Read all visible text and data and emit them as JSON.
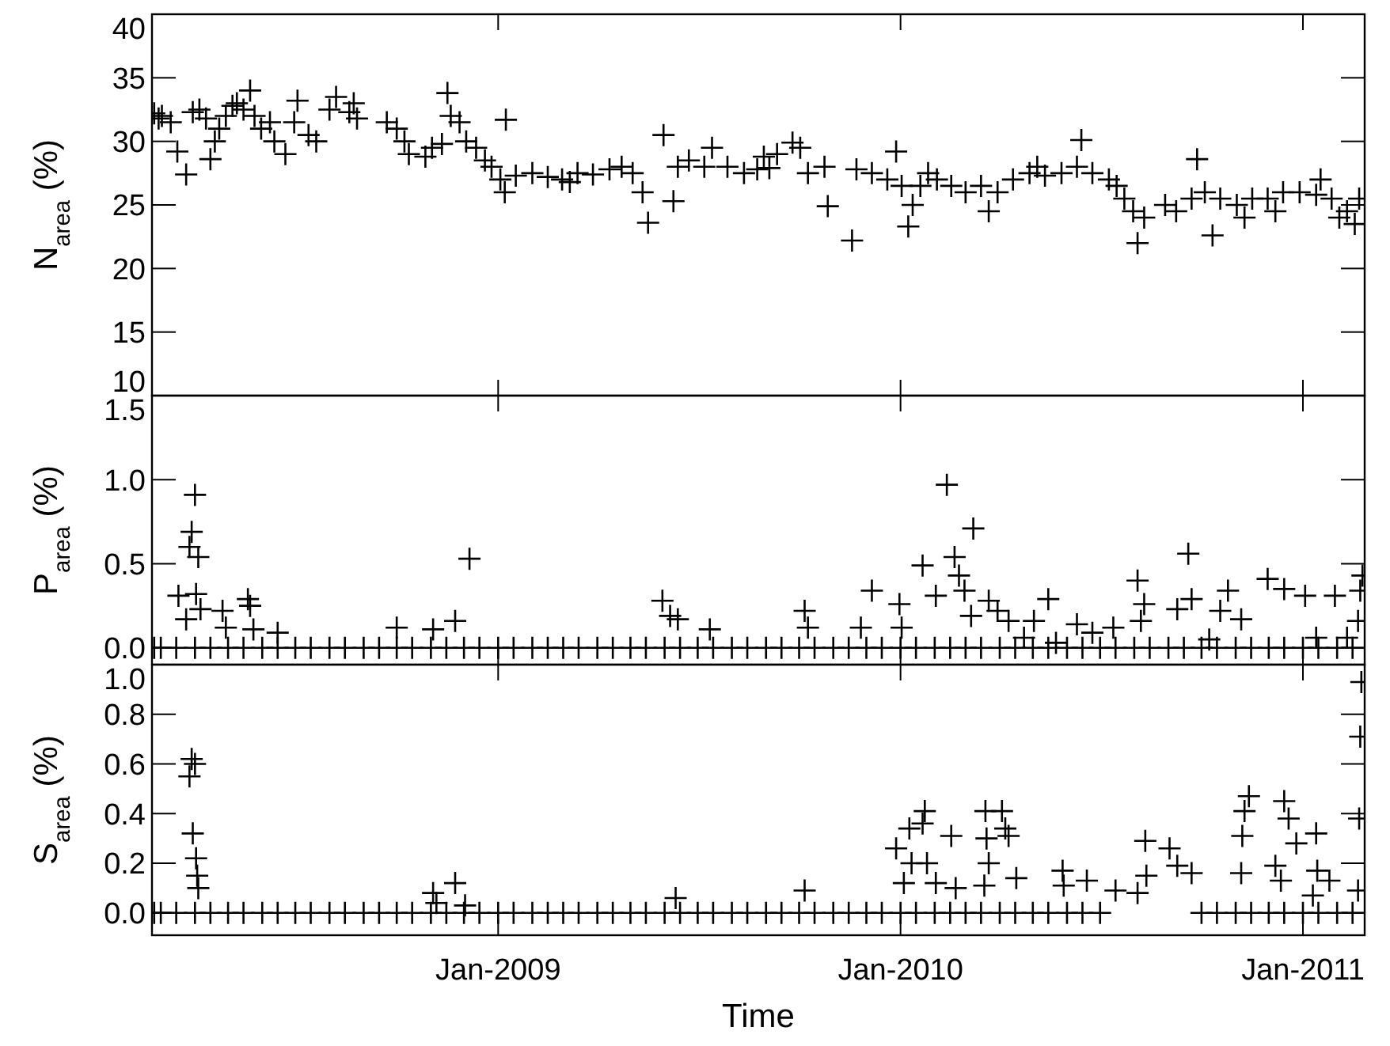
{
  "chart_data": [
    {
      "type": "scatter",
      "ylabel": "N$_{area}$ (%)",
      "xlim": [
        "2008-02-22",
        "2011-02-26"
      ],
      "ylim": [
        10,
        40
      ],
      "yticks": [
        10,
        15,
        20,
        25,
        30,
        35,
        40
      ],
      "xticks": [
        {
          "value": "2009-01-01",
          "label": null
        },
        {
          "value": "2010-01-01",
          "label": null
        },
        {
          "value": "2011-01-01",
          "label": null
        }
      ],
      "tick_labels": "y",
      "marker": "cross",
      "series": [
        {
          "color": "#000000",
          "x": [
            "2008-02-24",
            "2008-02-28",
            "2008-03-02",
            "2008-03-10",
            "2008-03-16",
            "2008-03-24",
            "2008-03-30",
            "2008-04-05",
            "2008-04-11",
            "2008-04-15",
            "2008-04-19",
            "2008-04-23",
            "2008-04-29",
            "2008-05-05",
            "2008-05-09",
            "2008-05-15",
            "2008-05-21",
            "2008-05-25",
            "2008-05-31",
            "2008-06-08",
            "2008-06-12",
            "2008-06-22",
            "2008-06-30",
            "2008-07-03",
            "2008-07-13",
            "2008-07-20",
            "2008-08-01",
            "2008-08-07",
            "2008-08-19",
            "2008-08-23",
            "2008-08-26",
            "2008-09-22",
            "2008-10-01",
            "2008-10-08",
            "2008-10-12",
            "2008-10-27",
            "2008-11-02",
            "2008-11-11",
            "2008-11-16",
            "2008-11-19",
            "2008-11-27",
            "2008-12-03",
            "2008-12-12",
            "2008-12-20",
            "2008-12-26",
            "2009-01-03",
            "2009-01-07",
            "2009-01-08",
            "2009-01-17",
            "2009-02-01",
            "2009-02-15",
            "2009-02-28",
            "2009-03-07",
            "2009-03-14",
            "2009-03-28",
            "2009-04-12",
            "2009-04-23",
            "2009-05-03",
            "2009-05-12",
            "2009-05-17",
            "2009-05-31",
            "2009-06-09",
            "2009-06-13",
            "2009-06-23",
            "2009-07-07",
            "2009-07-14",
            "2009-07-28",
            "2009-08-12",
            "2009-08-24",
            "2009-08-30",
            "2009-09-04",
            "2009-09-11",
            "2009-09-25",
            "2009-10-02",
            "2009-10-09",
            "2009-10-24",
            "2009-10-27",
            "2009-11-18",
            "2009-11-22",
            "2009-12-06",
            "2009-12-20",
            "2009-12-28",
            "2010-01-02",
            "2010-01-08",
            "2010-01-12",
            "2010-01-19",
            "2010-01-26",
            "2010-02-03",
            "2010-02-16",
            "2010-03-01",
            "2010-03-15",
            "2010-03-22",
            "2010-03-30",
            "2010-04-13",
            "2010-04-28",
            "2010-05-05",
            "2010-05-12",
            "2010-05-27",
            "2010-06-10",
            "2010-06-14",
            "2010-06-24",
            "2010-07-09",
            "2010-07-16",
            "2010-07-23",
            "2010-07-31",
            "2010-08-04",
            "2010-08-10",
            "2010-08-29",
            "2010-09-08",
            "2010-09-22",
            "2010-09-27",
            "2010-10-04",
            "2010-10-11",
            "2010-10-18",
            "2010-11-02",
            "2010-11-09",
            "2010-11-16",
            "2010-11-30",
            "2010-12-07",
            "2010-12-14",
            "2010-12-29",
            "2011-01-13",
            "2011-01-17",
            "2011-01-27",
            "2011-02-03",
            "2011-02-10",
            "2011-02-17",
            "2011-02-21"
          ],
          "values": [
            32.2,
            31.8,
            32.0,
            31.5,
            29.2,
            27.4,
            32.3,
            32.5,
            31.8,
            28.6,
            30.0,
            31.0,
            32.0,
            32.8,
            33.0,
            32.5,
            34.0,
            32.0,
            31.0,
            31.5,
            30.0,
            29.0,
            31.5,
            33.2,
            30.5,
            30.0,
            32.5,
            33.5,
            32.3,
            33.0,
            31.8,
            31.5,
            31.0,
            30.0,
            29.0,
            28.8,
            29.5,
            29.8,
            33.8,
            32.0,
            31.5,
            30.0,
            29.5,
            28.5,
            28.0,
            27.0,
            26.0,
            31.7,
            27.3,
            27.5,
            27.2,
            27.0,
            26.8,
            27.5,
            27.4,
            27.8,
            28.0,
            27.5,
            26.0,
            23.6,
            30.5,
            25.3,
            28.0,
            28.5,
            28.0,
            29.5,
            28.0,
            27.5,
            27.8,
            28.8,
            27.9,
            29.0,
            29.9,
            29.5,
            27.5,
            28.0,
            24.9,
            22.2,
            27.8,
            27.5,
            27.0,
            29.2,
            26.5,
            23.3,
            25.0,
            26.5,
            27.5,
            27.0,
            26.5,
            26.0,
            26.5,
            24.5,
            26.0,
            27.0,
            27.5,
            28.0,
            27.3,
            27.5,
            28.0,
            30.1,
            27.5,
            27.0,
            26.5,
            25.5,
            24.5,
            22.0,
            24.0,
            25.0,
            24.5,
            25.5,
            28.6,
            26.0,
            22.6,
            25.5,
            25.0,
            24.0,
            25.5,
            25.5,
            24.5,
            26.0,
            26.0,
            25.8,
            27.0,
            25.5,
            24.0,
            24.5,
            23.5,
            25.5
          ]
        }
      ]
    },
    {
      "type": "scatter",
      "ylabel": "P$_{area}$ (%)",
      "xlim": [
        "2008-02-22",
        "2011-02-26"
      ],
      "ylim": [
        -0.1,
        1.5
      ],
      "yticks": [
        {
          "value": 0,
          "label": "0.0"
        },
        {
          "value": 0.5,
          "label": "0.5"
        },
        {
          "value": 1,
          "label": "1.0"
        },
        {
          "value": 1.5,
          "label": "1.5"
        }
      ],
      "xticks": [
        {
          "value": "2009-01-01",
          "label": null
        },
        {
          "value": "2010-01-01",
          "label": null
        },
        {
          "value": "2011-01-01",
          "label": null
        }
      ],
      "tick_labels": "y",
      "marker": "cross",
      "series": [
        {
          "color": "#000000",
          "x": [
            "2008-02-24",
            "2008-03-01",
            "2008-03-15",
            "2008-04-01",
            "2008-04-15",
            "2008-05-01",
            "2008-05-15",
            "2008-06-01",
            "2008-06-15",
            "2008-07-01",
            "2008-07-15",
            "2008-08-01",
            "2008-08-15",
            "2008-09-01",
            "2008-09-15",
            "2008-10-01",
            "2008-10-15",
            "2008-11-01",
            "2008-11-15",
            "2008-12-01",
            "2008-12-15",
            "2009-01-01",
            "2009-01-15",
            "2009-02-01",
            "2009-02-15",
            "2009-03-01",
            "2009-03-15",
            "2009-04-01",
            "2009-04-15",
            "2009-05-01",
            "2009-05-15",
            "2009-06-01",
            "2009-06-15",
            "2009-07-01",
            "2009-07-15",
            "2009-08-01",
            "2009-08-15",
            "2009-09-01",
            "2009-09-15",
            "2009-10-01",
            "2009-10-15",
            "2009-11-01",
            "2009-11-15",
            "2009-12-01",
            "2009-12-15",
            "2010-01-01",
            "2010-01-15",
            "2010-02-01",
            "2010-02-15",
            "2010-03-01",
            "2010-03-15",
            "2010-04-01",
            "2010-04-15",
            "2010-05-01",
            "2010-05-15",
            "2010-06-01",
            "2010-06-15",
            "2010-07-01",
            "2010-07-15",
            "2010-08-01",
            "2010-08-15",
            "2010-09-01",
            "2010-09-15",
            "2010-10-01",
            "2010-10-15",
            "2010-11-01",
            "2010-11-15",
            "2010-12-01",
            "2010-12-15",
            "2011-01-01",
            "2011-01-15",
            "2011-02-01",
            "2011-02-15",
            "2008-03-17",
            "2008-03-24",
            "2008-03-27",
            "2008-03-29",
            "2008-04-01",
            "2008-04-02",
            "2008-04-04",
            "2008-04-06",
            "2008-04-26",
            "2008-04-29",
            "2008-05-19",
            "2008-05-21",
            "2008-05-24",
            "2008-06-15",
            "2008-10-01",
            "2008-11-03",
            "2008-11-23",
            "2008-12-06",
            "2009-05-30",
            "2009-06-06",
            "2009-06-13",
            "2009-07-12",
            "2009-10-06",
            "2009-10-09",
            "2009-11-26",
            "2009-12-06",
            "2009-12-31",
            "2010-01-02",
            "2010-01-21",
            "2010-02-02",
            "2010-02-12",
            "2010-02-19",
            "2010-02-23",
            "2010-02-28",
            "2010-03-06",
            "2010-03-08",
            "2010-03-22",
            "2010-03-30",
            "2010-04-09",
            "2010-04-23",
            "2010-05-02",
            "2010-05-15",
            "2010-05-22",
            "2010-06-10",
            "2010-06-24",
            "2010-07-13",
            "2010-08-04",
            "2010-08-07",
            "2010-08-10",
            "2010-09-09",
            "2010-09-19",
            "2010-09-22",
            "2010-10-08",
            "2010-10-18",
            "2010-10-25",
            "2010-11-06",
            "2010-11-30",
            "2010-12-15",
            "2011-01-03",
            "2011-01-13",
            "2011-01-30",
            "2011-02-10",
            "2011-02-20",
            "2011-02-22",
            "2011-02-24"
          ],
          "values": [
            0,
            0,
            0,
            0,
            0,
            0,
            0,
            0,
            0,
            0,
            0,
            0,
            0,
            0,
            0,
            0,
            0,
            0,
            0,
            0,
            0,
            0,
            0,
            0,
            0,
            0,
            0,
            0,
            0,
            0,
            0,
            0,
            0,
            0,
            0,
            0,
            0,
            0,
            0,
            0,
            0,
            0,
            0,
            0,
            0,
            0,
            0,
            0,
            0,
            0,
            0,
            0,
            0,
            0,
            0,
            0,
            0,
            0,
            0,
            0,
            0,
            0,
            0,
            0,
            0,
            0,
            0,
            0,
            0,
            0,
            0,
            0,
            0,
            0.31,
            0.17,
            0.6,
            0.69,
            0.91,
            0.32,
            0.54,
            0.23,
            0.22,
            0.12,
            0.29,
            0.25,
            0.11,
            0.09,
            0.12,
            0.11,
            0.16,
            0.53,
            0.28,
            0.19,
            0.17,
            0.11,
            0.22,
            0.12,
            0.12,
            0.34,
            0.26,
            0.12,
            0.49,
            0.31,
            0.97,
            0.54,
            0.43,
            0.34,
            0.19,
            0.71,
            0.28,
            0.22,
            0.16,
            0.06,
            0.16,
            0.29,
            0.03,
            0.14,
            0.09,
            0.12,
            0.4,
            0.16,
            0.26,
            0.23,
            0.56,
            0.29,
            0.05,
            0.22,
            0.34,
            0.17,
            0.41,
            0.35,
            0.31,
            0.06,
            0.31,
            0.06,
            0.16,
            0.34,
            0.43
          ]
        }
      ]
    },
    {
      "type": "scatter",
      "ylabel": "S$_{area}$ (%)",
      "xlabel": "Time",
      "xlim": [
        "2008-02-22",
        "2011-02-26"
      ],
      "ylim": [
        -0.09,
        1.0
      ],
      "yticks": [
        {
          "value": 0,
          "label": "0.0"
        },
        {
          "value": 0.2,
          "label": "0.2"
        },
        {
          "value": 0.4,
          "label": "0.4"
        },
        {
          "value": 0.6,
          "label": "0.6"
        },
        {
          "value": 0.8,
          "label": "0.8"
        },
        {
          "value": 1,
          "label": "1.0"
        }
      ],
      "xticks": [
        {
          "value": "2009-01-01",
          "label": "Jan-2009"
        },
        {
          "value": "2010-01-01",
          "label": "Jan-2010"
        },
        {
          "value": "2011-01-01",
          "label": "Jan-2011"
        }
      ],
      "marker": "cross",
      "series": [
        {
          "color": "#000000",
          "x": [
            "2008-02-24",
            "2008-03-01",
            "2008-03-15",
            "2008-04-01",
            "2008-04-15",
            "2008-05-01",
            "2008-05-15",
            "2008-06-01",
            "2008-06-15",
            "2008-07-01",
            "2008-07-15",
            "2008-08-01",
            "2008-08-15",
            "2008-09-01",
            "2008-09-15",
            "2008-10-01",
            "2008-10-15",
            "2008-11-01",
            "2008-11-15",
            "2008-12-01",
            "2008-12-15",
            "2009-01-01",
            "2009-01-15",
            "2009-02-01",
            "2009-02-15",
            "2009-03-01",
            "2009-03-15",
            "2009-04-01",
            "2009-04-15",
            "2009-05-01",
            "2009-05-15",
            "2009-06-01",
            "2009-06-15",
            "2009-07-01",
            "2009-07-15",
            "2009-08-01",
            "2009-08-15",
            "2009-09-01",
            "2009-09-15",
            "2009-10-01",
            "2009-10-15",
            "2009-11-01",
            "2009-11-15",
            "2009-12-01",
            "2009-12-15",
            "2010-01-01",
            "2010-01-15",
            "2010-02-01",
            "2010-02-15",
            "2010-03-01",
            "2010-03-15",
            "2010-04-01",
            "2010-04-15",
            "2010-05-01",
            "2010-05-15",
            "2010-06-01",
            "2010-06-15",
            "2010-07-01",
            "2010-10-01",
            "2010-10-15",
            "2010-11-01",
            "2010-11-15",
            "2010-12-01",
            "2010-12-15",
            "2011-01-01",
            "2011-01-15",
            "2011-02-01",
            "2011-02-15",
            "2008-03-27",
            "2008-03-29",
            "2008-03-30",
            "2008-04-01",
            "2008-04-02",
            "2008-04-03",
            "2008-04-04",
            "2008-11-03",
            "2008-11-06",
            "2008-11-23",
            "2008-12-02",
            "2009-06-11",
            "2009-10-06",
            "2009-12-28",
            "2010-01-04",
            "2010-01-09",
            "2010-01-11",
            "2010-01-21",
            "2010-01-23",
            "2010-01-25",
            "2010-02-02",
            "2010-02-16",
            "2010-02-20",
            "2010-03-18",
            "2010-03-19",
            "2010-03-20",
            "2010-03-22",
            "2010-04-03",
            "2010-04-06",
            "2010-04-09",
            "2010-04-16",
            "2010-05-28",
            "2010-05-29",
            "2010-06-19",
            "2010-07-15",
            "2010-08-04",
            "2010-08-11",
            "2010-08-12",
            "2010-09-02",
            "2010-09-09",
            "2010-09-22",
            "2010-11-06",
            "2010-11-07",
            "2010-11-09",
            "2010-11-13",
            "2010-12-07",
            "2010-12-12",
            "2010-12-15",
            "2010-12-19",
            "2010-12-26",
            "2011-01-10",
            "2011-01-13",
            "2011-01-14",
            "2011-01-25",
            "2011-02-20",
            "2011-02-21",
            "2011-02-22",
            "2011-02-23"
          ],
          "values": [
            0,
            0,
            0,
            0,
            0,
            0,
            0,
            0,
            0,
            0,
            0,
            0,
            0,
            0,
            0,
            0,
            0,
            0,
            0,
            0,
            0,
            0,
            0,
            0,
            0,
            0,
            0,
            0,
            0,
            0,
            0,
            0,
            0,
            0,
            0,
            0,
            0,
            0,
            0,
            0,
            0,
            0,
            0,
            0,
            0,
            0,
            0,
            0,
            0,
            0,
            0,
            0,
            0,
            0,
            0,
            0,
            0,
            0,
            0,
            0,
            0,
            0,
            0,
            0,
            0,
            0,
            0,
            0,
            0.55,
            0.62,
            0.32,
            0.6,
            0.22,
            0.15,
            0.1,
            0.08,
            0.04,
            0.12,
            0.03,
            0.06,
            0.09,
            0.26,
            0.12,
            0.34,
            0.2,
            0.36,
            0.41,
            0.2,
            0.12,
            0.31,
            0.1,
            0.11,
            0.41,
            0.3,
            0.2,
            0.41,
            0.34,
            0.31,
            0.14,
            0.17,
            0.11,
            0.13,
            0.09,
            0.08,
            0.29,
            0.15,
            0.26,
            0.19,
            0.16,
            0.16,
            0.31,
            0.41,
            0.47,
            0.19,
            0.13,
            0.45,
            0.38,
            0.28,
            0.07,
            0.32,
            0.17,
            0.13,
            0.09,
            0.38,
            0.71,
            0.93
          ]
        }
      ]
    }
  ]
}
